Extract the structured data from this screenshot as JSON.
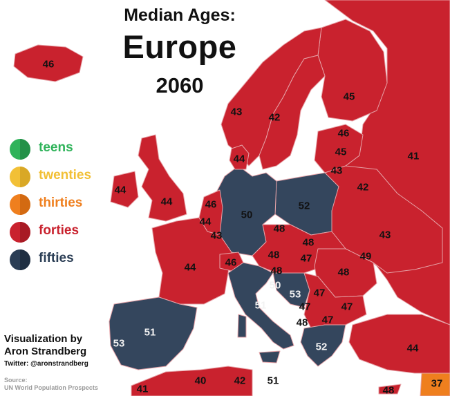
{
  "title": {
    "line1": "Median Ages:",
    "line2": "Europe",
    "line3": "2060"
  },
  "legend": [
    {
      "label": "teens",
      "color": "#2fb35a",
      "shade": "#249148"
    },
    {
      "label": "twenties",
      "color": "#f2c036",
      "shade": "#d9a826"
    },
    {
      "label": "thirties",
      "color": "#ef7f1e",
      "shade": "#d36a12"
    },
    {
      "label": "forties",
      "color": "#c9222e",
      "shade": "#a81a24"
    },
    {
      "label": "fifties",
      "color": "#2b3e55",
      "shade": "#1f2f42"
    }
  ],
  "colors": {
    "forties": "#c9222e",
    "fifties": "#34465d",
    "thirties": "#ef7f1e",
    "land_other": "#ffffff",
    "border": "#e6a3a8"
  },
  "country_values": [
    {
      "name": "iceland-value",
      "value": "46"
    },
    {
      "name": "norway-value",
      "value": "43"
    },
    {
      "name": "sweden-value",
      "value": "42"
    },
    {
      "name": "finland-value",
      "value": "45"
    },
    {
      "name": "estonia-value",
      "value": "46"
    },
    {
      "name": "latvia-value",
      "value": "45"
    },
    {
      "name": "lithuania-value",
      "value": "43"
    },
    {
      "name": "russia-value",
      "value": "41"
    },
    {
      "name": "belarus-value",
      "value": "42"
    },
    {
      "name": "denmark-value",
      "value": "44"
    },
    {
      "name": "ireland-value",
      "value": "44"
    },
    {
      "name": "united-kingdom-value",
      "value": "44"
    },
    {
      "name": "netherlands-value",
      "value": "46"
    },
    {
      "name": "belgium-value",
      "value": "44"
    },
    {
      "name": "luxembourg-value",
      "value": "43"
    },
    {
      "name": "germany-value",
      "value": "50"
    },
    {
      "name": "poland-value",
      "value": "52"
    },
    {
      "name": "czechia-value",
      "value": "48"
    },
    {
      "name": "slovakia-value",
      "value": "48"
    },
    {
      "name": "ukraine-value",
      "value": "43"
    },
    {
      "name": "france-value",
      "value": "44"
    },
    {
      "name": "switzerland-value",
      "value": "46"
    },
    {
      "name": "austria-value",
      "value": "48"
    },
    {
      "name": "hungary-value",
      "value": "47"
    },
    {
      "name": "moldova-value",
      "value": "49"
    },
    {
      "name": "romania-value",
      "value": "48"
    },
    {
      "name": "slovenia-value",
      "value": "48"
    },
    {
      "name": "croatia-value",
      "value": "50"
    },
    {
      "name": "bosnia-value",
      "value": "53"
    },
    {
      "name": "serbia-value",
      "value": "47"
    },
    {
      "name": "bulgaria-value",
      "value": "47"
    },
    {
      "name": "montenegro-value",
      "value": "47"
    },
    {
      "name": "kosovo-value",
      "value": "48"
    },
    {
      "name": "macedonia-value",
      "value": "47"
    },
    {
      "name": "italy-value",
      "value": "51"
    },
    {
      "name": "spain-value",
      "value": "51"
    },
    {
      "name": "portugal-value",
      "value": "53"
    },
    {
      "name": "greece-value",
      "value": "52"
    },
    {
      "name": "turkey-value",
      "value": "44"
    },
    {
      "name": "algeria-value",
      "value": "40"
    },
    {
      "name": "tunisia-value",
      "value": "42"
    },
    {
      "name": "morocco-value",
      "value": "41"
    },
    {
      "name": "malta-value",
      "value": "51"
    },
    {
      "name": "cyprus-value",
      "value": "48"
    },
    {
      "name": "middle-east-value",
      "value": "37"
    }
  ],
  "credit": {
    "line1": "Visualization by",
    "line2": "Aron Strandberg",
    "twitter": "Twitter: @aronstrandberg"
  },
  "source": {
    "label": "Source:",
    "text": "UN World Population Prospects"
  }
}
